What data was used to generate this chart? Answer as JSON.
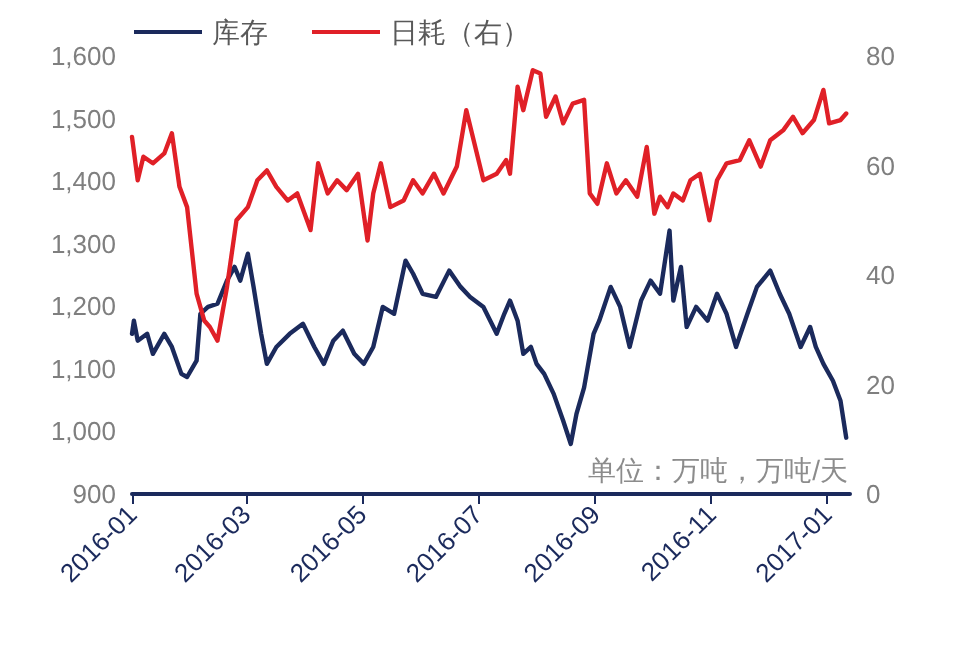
{
  "chart_data": {
    "type": "line",
    "xlim": [
      "2016-01-01",
      "2017-01-13"
    ],
    "xticks": [
      "2016-01",
      "2016-03",
      "2016-05",
      "2016-07",
      "2016-09",
      "2016-11",
      "2017-01"
    ],
    "ylim": [
      900,
      1600
    ],
    "yticks": [
      {
        "value": 900,
        "label": "900"
      },
      {
        "value": 1000,
        "label": "1,000"
      },
      {
        "value": 1100,
        "label": "1,100"
      },
      {
        "value": 1200,
        "label": "1,200"
      },
      {
        "value": 1300,
        "label": "1,300"
      },
      {
        "value": 1400,
        "label": "1,400"
      },
      {
        "value": 1500,
        "label": "1,500"
      },
      {
        "value": 1600,
        "label": "1,600"
      }
    ],
    "y2lim": [
      0,
      80
    ],
    "y2ticks": [
      0,
      20,
      40,
      60,
      80
    ],
    "grid": false,
    "legend": "top left",
    "marker": "none",
    "annotations": [
      "单位：万吨，万吨/天"
    ],
    "series": [
      {
        "name": "库存",
        "color": "#1b2a5c",
        "x": [
          "2016-01-01",
          "2016-01-02",
          "2016-01-04",
          "2016-01-09",
          "2016-01-12",
          "2016-01-18",
          "2016-01-22",
          "2016-01-27",
          "2016-01-30",
          "2016-02-04",
          "2016-02-06",
          "2016-02-10",
          "2016-02-15",
          "2016-02-20",
          "2016-02-24",
          "2016-02-27",
          "2016-03-02",
          "2016-03-05",
          "2016-03-09",
          "2016-03-12",
          "2016-03-17",
          "2016-03-24",
          "2016-03-31",
          "2016-04-06",
          "2016-04-11",
          "2016-04-16",
          "2016-04-21",
          "2016-04-27",
          "2016-05-02",
          "2016-05-07",
          "2016-05-12",
          "2016-05-18",
          "2016-05-24",
          "2016-05-28",
          "2016-06-02",
          "2016-06-09",
          "2016-06-16",
          "2016-06-22",
          "2016-06-27",
          "2016-07-04",
          "2016-07-11",
          "2016-07-15",
          "2016-07-18",
          "2016-07-22",
          "2016-07-25",
          "2016-07-29",
          "2016-08-01",
          "2016-08-05",
          "2016-08-10",
          "2016-08-15",
          "2016-08-19",
          "2016-08-22",
          "2016-08-26",
          "2016-08-31",
          "2016-09-03",
          "2016-09-09",
          "2016-09-14",
          "2016-09-19",
          "2016-09-25",
          "2016-09-30",
          "2016-10-05",
          "2016-10-10",
          "2016-10-12",
          "2016-10-16",
          "2016-10-19",
          "2016-10-24",
          "2016-10-30",
          "2016-11-04",
          "2016-11-09",
          "2016-11-14",
          "2016-11-20",
          "2016-11-25",
          "2016-12-02",
          "2016-12-07",
          "2016-12-12",
          "2016-12-18",
          "2016-12-23",
          "2016-12-26",
          "2016-12-30",
          "2017-01-04",
          "2017-01-08",
          "2017-01-11"
        ],
        "values": [
          1156,
          1177,
          1145,
          1156,
          1124,
          1156,
          1135,
          1092,
          1087,
          1113,
          1188,
          1199,
          1204,
          1241,
          1263,
          1241,
          1284,
          1231,
          1156,
          1108,
          1135,
          1156,
          1172,
          1135,
          1108,
          1145,
          1161,
          1124,
          1108,
          1135,
          1199,
          1188,
          1273,
          1252,
          1220,
          1215,
          1257,
          1231,
          1215,
          1199,
          1156,
          1188,
          1209,
          1177,
          1124,
          1135,
          1108,
          1092,
          1060,
          1017,
          980,
          1028,
          1070,
          1156,
          1177,
          1231,
          1199,
          1135,
          1209,
          1241,
          1220,
          1321,
          1209,
          1263,
          1167,
          1199,
          1177,
          1220,
          1188,
          1135,
          1188,
          1231,
          1257,
          1220,
          1188,
          1135,
          1167,
          1135,
          1108,
          1081,
          1049,
          990
        ]
      },
      {
        "name": "日耗（右）",
        "color": "#e02027",
        "axis": "y2",
        "x": [
          "2016-01-01",
          "2016-01-04",
          "2016-01-07",
          "2016-01-12",
          "2016-01-18",
          "2016-01-22",
          "2016-01-26",
          "2016-01-30",
          "2016-02-04",
          "2016-02-08",
          "2016-02-11",
          "2016-02-15",
          "2016-02-20",
          "2016-02-25",
          "2016-03-02",
          "2016-03-07",
          "2016-03-12",
          "2016-03-17",
          "2016-03-23",
          "2016-03-28",
          "2016-04-04",
          "2016-04-08",
          "2016-04-13",
          "2016-04-18",
          "2016-04-23",
          "2016-04-29",
          "2016-05-04",
          "2016-05-07",
          "2016-05-11",
          "2016-05-16",
          "2016-05-23",
          "2016-05-28",
          "2016-06-02",
          "2016-06-08",
          "2016-06-13",
          "2016-06-20",
          "2016-06-25",
          "2016-07-04",
          "2016-07-11",
          "2016-07-16",
          "2016-07-18",
          "2016-07-22",
          "2016-07-25",
          "2016-07-30",
          "2016-08-03",
          "2016-08-06",
          "2016-08-11",
          "2016-08-15",
          "2016-08-20",
          "2016-08-26",
          "2016-08-29",
          "2016-09-02",
          "2016-09-07",
          "2016-09-12",
          "2016-09-17",
          "2016-09-23",
          "2016-09-28",
          "2016-10-02",
          "2016-10-05",
          "2016-10-09",
          "2016-10-12",
          "2016-10-17",
          "2016-10-21",
          "2016-10-26",
          "2016-10-31",
          "2016-11-04",
          "2016-11-09",
          "2016-11-16",
          "2016-11-21",
          "2016-11-27",
          "2016-12-02",
          "2016-12-09",
          "2016-12-14",
          "2016-12-19",
          "2016-12-25",
          "2016-12-30",
          "2017-01-02",
          "2017-01-08",
          "2017-01-11"
        ],
        "values": [
          65.2,
          57.3,
          61.6,
          60.4,
          62.2,
          65.9,
          56.1,
          52.4,
          36.6,
          31.7,
          30.5,
          28.0,
          37.8,
          50.0,
          52.4,
          57.3,
          59.1,
          56.1,
          53.6,
          54.9,
          48.2,
          60.4,
          54.9,
          57.3,
          55.5,
          58.5,
          46.3,
          54.9,
          60.4,
          52.4,
          53.6,
          57.3,
          54.9,
          58.5,
          54.9,
          59.8,
          70.1,
          57.3,
          58.5,
          61.0,
          58.5,
          74.4,
          70.1,
          77.4,
          76.8,
          68.9,
          72.6,
          67.7,
          71.3,
          72.0,
          54.9,
          53.0,
          60.4,
          54.9,
          57.3,
          54.3,
          63.4,
          51.2,
          54.3,
          52.4,
          54.9,
          53.6,
          57.3,
          58.5,
          50.0,
          57.3,
          60.4,
          61.0,
          64.6,
          59.8,
          64.6,
          66.5,
          68.9,
          65.9,
          68.3,
          73.8,
          67.7,
          68.3,
          69.5
        ]
      }
    ]
  }
}
